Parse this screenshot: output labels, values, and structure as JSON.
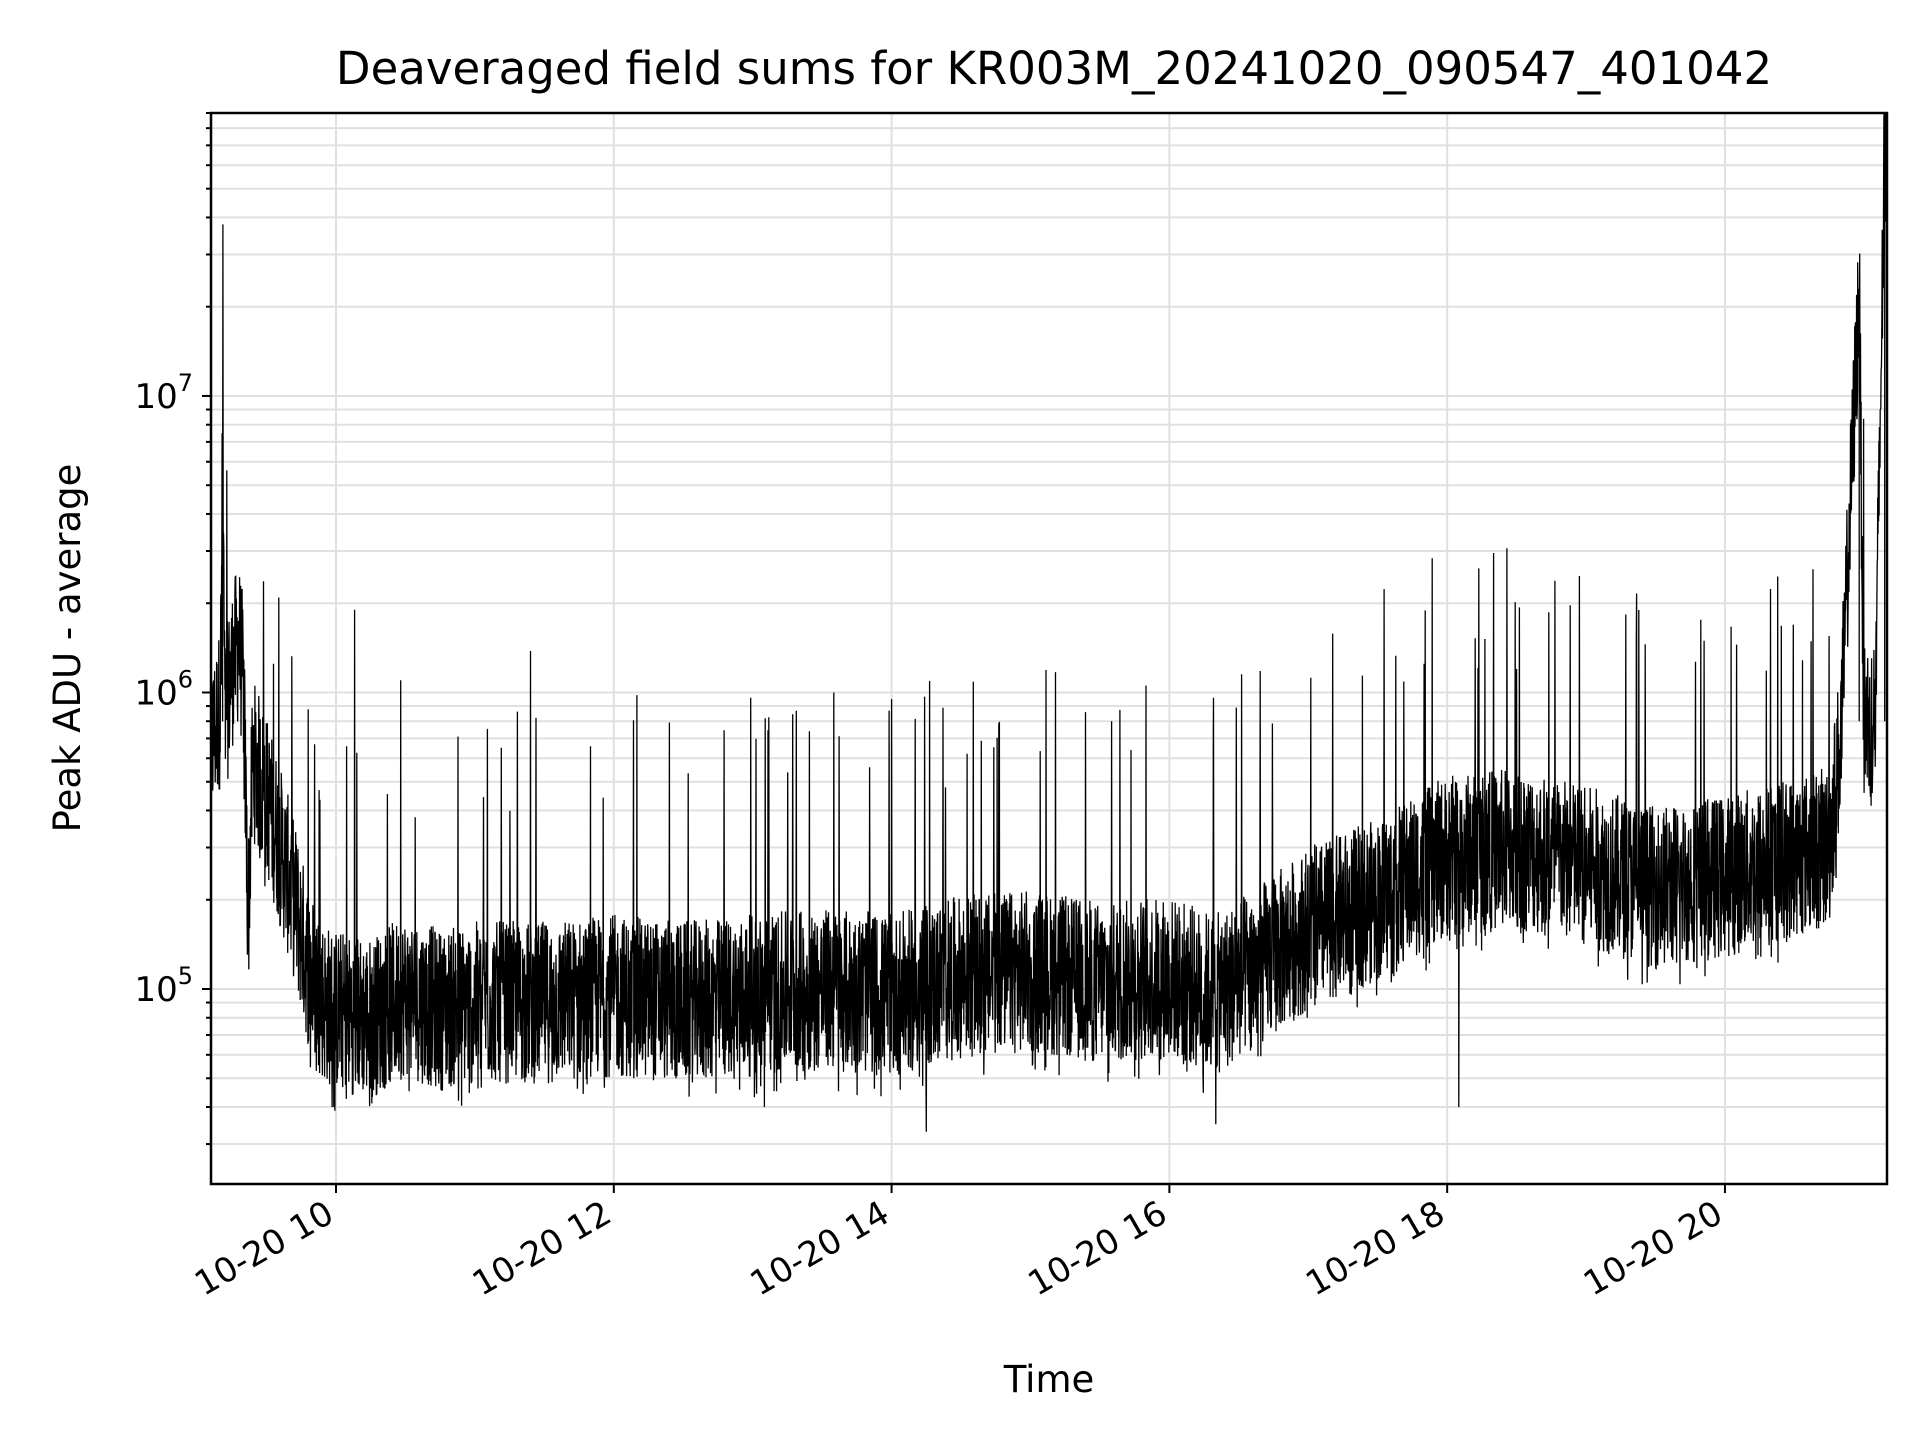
{
  "chart_data": {
    "type": "line",
    "title": "Deaveraged field sums for KR003M_20241020_090547_401042",
    "xlabel": "Time",
    "ylabel": "Peak ADU - average",
    "yscale": "log",
    "ylim": [
      22000,
      90000000
    ],
    "xlim": [
      "2024-10-20 09:06",
      "2024-10-20 21:10"
    ],
    "grid": true,
    "line_color": "#000000",
    "x_ticks": [
      {
        "value": "2024-10-20 10:00",
        "label": "10-20 10"
      },
      {
        "value": "2024-10-20 12:00",
        "label": "10-20 12"
      },
      {
        "value": "2024-10-20 14:00",
        "label": "10-20 14"
      },
      {
        "value": "2024-10-20 16:00",
        "label": "10-20 16"
      },
      {
        "value": "2024-10-20 18:00",
        "label": "10-20 18"
      },
      {
        "value": "2024-10-20 20:00",
        "label": "10-20 20"
      }
    ],
    "y_ticks": [
      {
        "value": 100000,
        "base": "10",
        "exp": "5"
      },
      {
        "value": 1000000,
        "base": "10",
        "exp": "6"
      },
      {
        "value": 10000000,
        "base": "10",
        "exp": "7"
      }
    ],
    "series": [
      {
        "points": [
          [
            "2024-10-20 09:06",
            650000
          ],
          [
            "2024-10-20 09:10",
            900000
          ],
          [
            "2024-10-20 09:11",
            6200000
          ],
          [
            "2024-10-20 09:12",
            800000
          ],
          [
            "2024-10-20 09:15",
            1200000
          ],
          [
            "2024-10-20 09:18",
            1500000
          ],
          [
            "2024-10-20 09:20",
            1100000
          ],
          [
            "2024-10-20 09:22",
            170000
          ],
          [
            "2024-10-20 09:24",
            600000
          ],
          [
            "2024-10-20 09:30",
            450000
          ],
          [
            "2024-10-20 09:36",
            300000
          ],
          [
            "2024-10-20 09:42",
            200000
          ],
          [
            "2024-10-20 09:48",
            120000
          ],
          [
            "2024-10-20 09:55",
            90000
          ],
          [
            "2024-10-20 10:00",
            85000
          ],
          [
            "2024-10-20 10:15",
            80000
          ],
          [
            "2024-10-20 10:30",
            95000
          ],
          [
            "2024-10-20 10:45",
            85000
          ],
          [
            "2024-10-20 11:00",
            90000
          ],
          [
            "2024-10-20 11:30",
            90000
          ],
          [
            "2024-10-20 12:00",
            95000
          ],
          [
            "2024-10-20 12:30",
            90000
          ],
          [
            "2024-10-20 13:00",
            95000
          ],
          [
            "2024-10-20 13:30",
            100000
          ],
          [
            "2024-10-20 14:00",
            95000
          ],
          [
            "2024-10-20 14:30",
            110000
          ],
          [
            "2024-10-20 15:00",
            115000
          ],
          [
            "2024-10-20 15:30",
            105000
          ],
          [
            "2024-10-20 16:00",
            110000
          ],
          [
            "2024-10-20 16:20",
            95000
          ],
          [
            "2024-10-20 16:45",
            130000
          ],
          [
            "2024-10-20 17:00",
            160000
          ],
          [
            "2024-10-20 17:30",
            200000
          ],
          [
            "2024-10-20 18:00",
            280000
          ],
          [
            "2024-10-20 18:30",
            300000
          ],
          [
            "2024-10-20 19:00",
            260000
          ],
          [
            "2024-10-20 19:30",
            220000
          ],
          [
            "2024-10-20 20:00",
            240000
          ],
          [
            "2024-10-20 20:30",
            280000
          ],
          [
            "2024-10-20 20:45",
            300000
          ],
          [
            "2024-10-20 20:50",
            700000
          ],
          [
            "2024-10-20 20:58",
            23000000
          ],
          [
            "2024-10-20 21:00",
            800000
          ],
          [
            "2024-10-20 21:05",
            850000
          ],
          [
            "2024-10-20 21:09",
            70000000
          ]
        ],
        "spikes": [
          [
            "2024-10-20 09:33",
            1250000
          ],
          [
            "2024-10-20 10:08",
            1900000
          ],
          [
            "2024-10-20 11:24",
            1380000
          ],
          [
            "2024-10-20 10:28",
            1100000
          ],
          [
            "2024-10-20 12:10",
            980000
          ],
          [
            "2024-10-20 13:35",
            1000000
          ],
          [
            "2024-10-20 14:00",
            950000
          ],
          [
            "2024-10-20 15:35",
            800000
          ],
          [
            "2024-10-20 17:50",
            1250000
          ],
          [
            "2024-10-20 18:30",
            1200000
          ],
          [
            "2024-10-20 20:05",
            1450000
          ],
          [
            "2024-10-20 20:45",
            1550000
          ],
          [
            "2024-10-20 14:15",
            33000
          ],
          [
            "2024-10-20 16:20",
            35000
          ],
          [
            "2024-10-20 13:05",
            40000
          ],
          [
            "2024-10-20 09:59",
            40000
          ],
          [
            "2024-10-20 18:05",
            40000
          ]
        ]
      }
    ]
  }
}
